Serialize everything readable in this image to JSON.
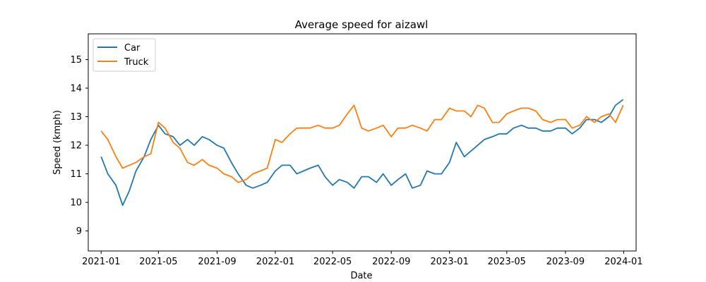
{
  "chart_data": {
    "type": "line",
    "title": "Average speed for aizawl",
    "xlabel": "Date",
    "ylabel": "Speed (kmph)",
    "xlim": [
      "2020-12-05",
      "2024-01-27"
    ],
    "ylim": [
      8.3,
      15.9
    ],
    "x_ticks": [
      "2021-01",
      "2021-05",
      "2021-09",
      "2022-01",
      "2022-05",
      "2022-09",
      "2023-01",
      "2023-05",
      "2023-09",
      "2024-01"
    ],
    "y_ticks": [
      9,
      10,
      11,
      12,
      13,
      14,
      15
    ],
    "grid": false,
    "legend": {
      "position": "top-left",
      "entries": [
        "Car",
        "Truck"
      ]
    },
    "series": [
      {
        "name": "Car",
        "color": "#1f77b4",
        "x": [
          "2021-01-01",
          "2021-01-15",
          "2021-02-01",
          "2021-02-15",
          "2021-03-01",
          "2021-03-15",
          "2021-04-01",
          "2021-04-15",
          "2021-05-01",
          "2021-05-15",
          "2021-06-01",
          "2021-06-15",
          "2021-07-01",
          "2021-07-15",
          "2021-08-01",
          "2021-08-15",
          "2021-09-01",
          "2021-09-15",
          "2021-10-01",
          "2021-10-15",
          "2021-11-01",
          "2021-11-15",
          "2021-12-01",
          "2021-12-15",
          "2022-01-01",
          "2022-01-15",
          "2022-02-01",
          "2022-02-15",
          "2022-03-01",
          "2022-03-15",
          "2022-04-01",
          "2022-04-15",
          "2022-05-01",
          "2022-05-15",
          "2022-06-01",
          "2022-06-15",
          "2022-07-01",
          "2022-07-15",
          "2022-08-01",
          "2022-08-15",
          "2022-09-01",
          "2022-09-15",
          "2022-10-01",
          "2022-10-15",
          "2022-11-01",
          "2022-11-15",
          "2022-12-01",
          "2022-12-15",
          "2023-01-01",
          "2023-01-15",
          "2023-02-01",
          "2023-02-15",
          "2023-03-01",
          "2023-03-15",
          "2023-04-01",
          "2023-04-15",
          "2023-05-01",
          "2023-05-15",
          "2023-06-01",
          "2023-06-15",
          "2023-07-01",
          "2023-07-15",
          "2023-08-01",
          "2023-08-15",
          "2023-09-01",
          "2023-09-15",
          "2023-10-01",
          "2023-10-15",
          "2023-11-01",
          "2023-11-15",
          "2023-12-01",
          "2023-12-15",
          "2023-12-31"
        ],
        "values": [
          11.6,
          11.0,
          10.6,
          9.9,
          10.4,
          11.1,
          11.6,
          12.2,
          12.7,
          12.4,
          12.3,
          12.0,
          12.2,
          12.0,
          12.3,
          12.2,
          12.0,
          11.9,
          11.4,
          11.0,
          10.6,
          10.5,
          10.6,
          10.7,
          11.1,
          11.3,
          11.3,
          11.0,
          11.1,
          11.2,
          11.3,
          10.9,
          10.6,
          10.8,
          10.7,
          10.5,
          10.9,
          10.9,
          10.7,
          11.0,
          10.6,
          10.8,
          11.0,
          10.5,
          10.6,
          11.1,
          11.0,
          11.0,
          11.4,
          12.1,
          11.6,
          11.8,
          12.0,
          12.2,
          12.3,
          12.4,
          12.4,
          12.6,
          12.7,
          12.6,
          12.6,
          12.5,
          12.5,
          12.6,
          12.6,
          12.4,
          12.6,
          12.9,
          12.9,
          12.8,
          13.0,
          13.4,
          13.6
        ]
      },
      {
        "name": "Truck",
        "color": "#ff7f0e",
        "x": [
          "2021-01-01",
          "2021-01-15",
          "2021-02-01",
          "2021-02-15",
          "2021-03-01",
          "2021-03-15",
          "2021-04-01",
          "2021-04-15",
          "2021-05-01",
          "2021-05-15",
          "2021-06-01",
          "2021-06-15",
          "2021-07-01",
          "2021-07-15",
          "2021-08-01",
          "2021-08-15",
          "2021-09-01",
          "2021-09-15",
          "2021-10-01",
          "2021-10-15",
          "2021-11-01",
          "2021-11-15",
          "2021-12-01",
          "2021-12-15",
          "2022-01-01",
          "2022-01-15",
          "2022-02-01",
          "2022-02-15",
          "2022-03-01",
          "2022-03-15",
          "2022-04-01",
          "2022-04-15",
          "2022-05-01",
          "2022-05-15",
          "2022-06-01",
          "2022-06-15",
          "2022-07-01",
          "2022-07-15",
          "2022-08-01",
          "2022-08-15",
          "2022-09-01",
          "2022-09-15",
          "2022-10-01",
          "2022-10-15",
          "2022-11-01",
          "2022-11-15",
          "2022-12-01",
          "2022-12-15",
          "2023-01-01",
          "2023-01-15",
          "2023-02-01",
          "2023-02-15",
          "2023-03-01",
          "2023-03-15",
          "2023-04-01",
          "2023-04-15",
          "2023-05-01",
          "2023-05-15",
          "2023-06-01",
          "2023-06-15",
          "2023-07-01",
          "2023-07-15",
          "2023-08-01",
          "2023-08-15",
          "2023-09-01",
          "2023-09-15",
          "2023-10-01",
          "2023-10-15",
          "2023-11-01",
          "2023-11-15",
          "2023-12-01",
          "2023-12-15",
          "2023-12-31"
        ],
        "values": [
          12.5,
          12.2,
          11.6,
          11.2,
          11.3,
          11.4,
          11.6,
          11.7,
          12.8,
          12.6,
          12.1,
          11.9,
          11.4,
          11.3,
          11.5,
          11.3,
          11.2,
          11.0,
          10.9,
          10.7,
          10.8,
          11.0,
          11.1,
          11.2,
          12.2,
          12.1,
          12.4,
          12.6,
          12.6,
          12.6,
          12.7,
          12.6,
          12.6,
          12.7,
          13.1,
          13.4,
          12.6,
          12.5,
          12.6,
          12.7,
          12.3,
          12.6,
          12.6,
          12.7,
          12.6,
          12.5,
          12.9,
          12.9,
          13.3,
          13.2,
          13.2,
          13.0,
          13.4,
          13.3,
          12.8,
          12.8,
          13.1,
          13.2,
          13.3,
          13.3,
          13.2,
          12.9,
          12.8,
          12.9,
          12.9,
          12.6,
          12.7,
          13.0,
          12.8,
          13.0,
          13.1,
          12.8,
          13.4
        ]
      }
    ]
  }
}
